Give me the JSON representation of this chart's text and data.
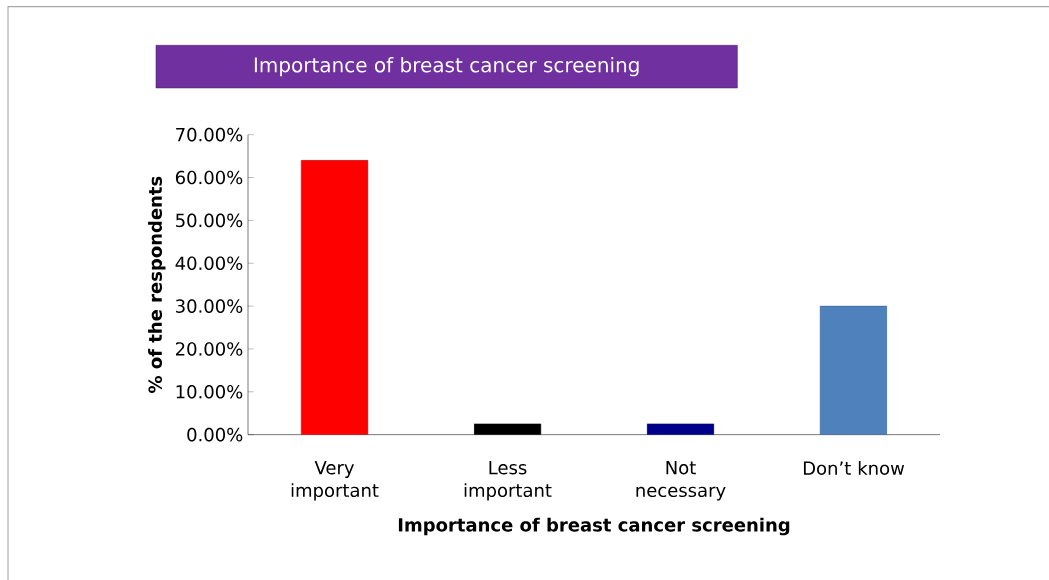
{
  "chart_data": {
    "type": "bar",
    "title": "Importance of breast cancer screening",
    "xlabel": "Importance of breast cancer screening",
    "ylabel": "% of the respondents",
    "categories": [
      "Very important",
      "Less important",
      "Not necessary",
      "Don’t know"
    ],
    "values": [
      64,
      2.5,
      2.5,
      30
    ],
    "colors": [
      "#ff0000",
      "#000000",
      "#00008b",
      "#4f81bd"
    ],
    "ylim": [
      0,
      70
    ],
    "yticks": [
      {
        "value": 0,
        "label": "0.00%"
      },
      {
        "value": 10,
        "label": "10.00%"
      },
      {
        "value": 20,
        "label": "20.00%"
      },
      {
        "value": 30,
        "label": "30.00%"
      },
      {
        "value": 40,
        "label": "40.00%"
      },
      {
        "value": 50,
        "label": "50.00%"
      },
      {
        "value": 60,
        "label": "60.00%"
      },
      {
        "value": 70,
        "label": "70.00%"
      }
    ],
    "grid": false
  }
}
